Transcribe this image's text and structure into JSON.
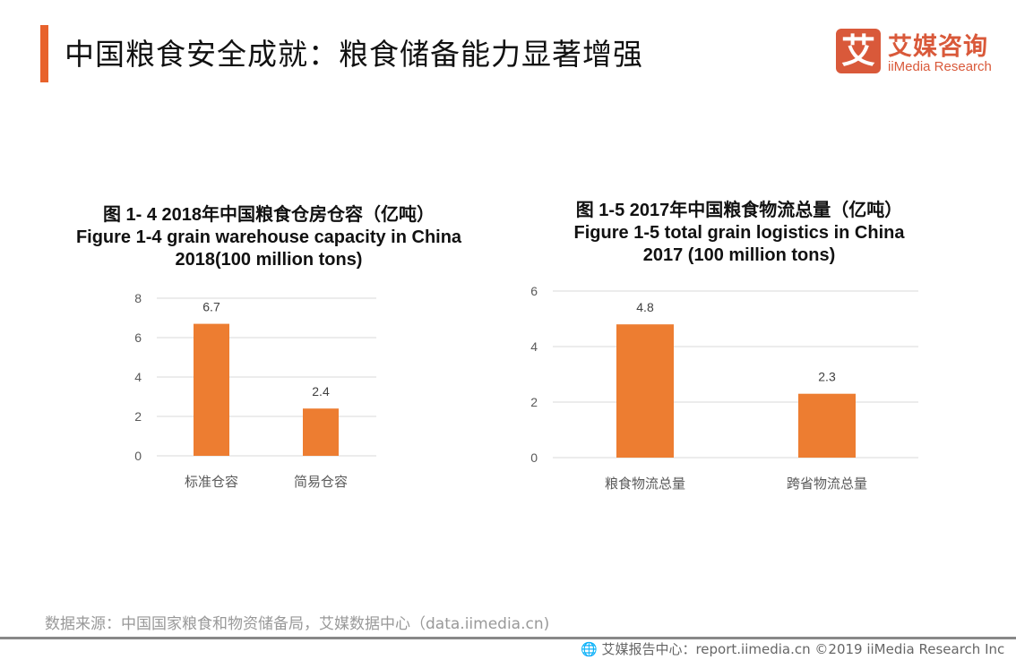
{
  "header": {
    "title": "中国粮食安全成就：粮食储备能力显著增强"
  },
  "logo": {
    "mark": "艾",
    "name_cn": "艾媒咨询",
    "name_en": "iiMedia Research"
  },
  "chart_data": [
    {
      "type": "bar",
      "title_cn": "图 1- 4 2018年中国粮食仓房仓容（亿吨）",
      "title_en": "Figure 1-4 grain warehouse capacity  in China 2018(100 million tons)",
      "categories": [
        "标准仓容",
        "简易仓容"
      ],
      "values": [
        6.7,
        2.4
      ],
      "ylim": [
        0,
        8
      ],
      "yticks": [
        0,
        2,
        4,
        6,
        8
      ],
      "grid": true,
      "color": "#ed7d31"
    },
    {
      "type": "bar",
      "title_cn": "图 1-5 2017年中国粮食物流总量（亿吨）",
      "title_en": "Figure 1-5 total grain logistics in China 2017 (100 million tons)",
      "categories": [
        "粮食物流总量",
        "跨省物流总量"
      ],
      "values": [
        4.8,
        2.3
      ],
      "ylim": [
        0,
        6
      ],
      "yticks": [
        0,
        2,
        4,
        6
      ],
      "grid": true,
      "color": "#ed7d31"
    }
  ],
  "source": "数据来源：中国国家粮食和物资储备局，艾媒数据中心（data.iimedia.cn)",
  "footer": {
    "icon": "globe-cursor-icon",
    "text": "艾媒报告中心：report.iimedia.cn  ©2019  iiMedia Research  Inc"
  }
}
